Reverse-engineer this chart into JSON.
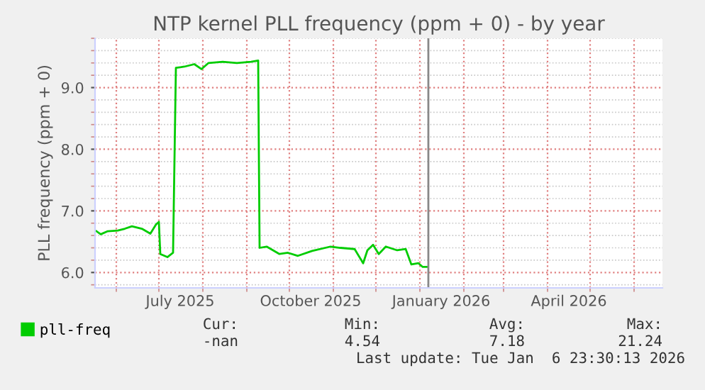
{
  "chart_data": {
    "type": "line",
    "title": "NTP kernel PLL frequency (ppm + 0) - by year",
    "ylabel": "PLL frequency (ppm + 0)",
    "xlim": [
      "2025-05-17",
      "2026-06-21"
    ],
    "ylim": [
      5.75,
      9.8
    ],
    "xticks": [
      {
        "value": "2025-07-16",
        "label": "July 2025"
      },
      {
        "value": "2025-10-16",
        "label": "October 2025"
      },
      {
        "value": "2026-01-16",
        "label": "January 2026"
      },
      {
        "value": "2026-04-16",
        "label": "April 2026"
      }
    ],
    "yticks": [
      {
        "value": 6,
        "label": "6.0"
      },
      {
        "value": 7,
        "label": "7.0"
      },
      {
        "value": 8,
        "label": "8.0"
      },
      {
        "value": 9,
        "label": "9.0"
      }
    ],
    "grid": true,
    "legend": "bottom",
    "marker": "none",
    "line_style": "solid",
    "series": [
      {
        "name": "pll-freq",
        "color": "#00cc00",
        "x": [
          "2025-05-18",
          "2025-05-21",
          "2025-05-26",
          "2025-06-02",
          "2025-06-07",
          "2025-06-12",
          "2025-06-19",
          "2025-06-25",
          "2025-06-29",
          "2025-07-01",
          "2025-07-02",
          "2025-07-07",
          "2025-07-11",
          "2025-07-13",
          "2025-07-19",
          "2025-07-26",
          "2025-07-31",
          "2025-08-05",
          "2025-08-15",
          "2025-08-25",
          "2025-09-04",
          "2025-09-09",
          "2025-09-10",
          "2025-09-15",
          "2025-09-24",
          "2025-09-30",
          "2025-10-07",
          "2025-10-17",
          "2025-10-30",
          "2025-11-06",
          "2025-11-16",
          "2025-11-22",
          "2025-11-25",
          "2025-11-29",
          "2025-12-03",
          "2025-12-08",
          "2025-12-16",
          "2025-12-22",
          "2025-12-26",
          "2025-12-31",
          "2026-01-03",
          "2026-01-06"
        ],
        "values": [
          6.67,
          6.62,
          6.67,
          6.68,
          6.71,
          6.75,
          6.71,
          6.63,
          6.78,
          6.82,
          6.3,
          6.25,
          6.32,
          9.32,
          9.34,
          9.38,
          9.3,
          9.4,
          9.42,
          9.4,
          9.42,
          9.44,
          6.4,
          6.42,
          6.3,
          6.32,
          6.27,
          6.35,
          6.42,
          6.4,
          6.38,
          6.15,
          6.36,
          6.45,
          6.3,
          6.42,
          6.36,
          6.38,
          6.13,
          6.15,
          6.09,
          6.09
        ]
      }
    ],
    "ref_lines": [
      {
        "axis": "x",
        "value": "2026-01-06T23:30",
        "color": "#888888"
      }
    ],
    "annotations": [
      "Cur:",
      "Min:",
      "Avg:",
      "Max:",
      "-nan",
      "4.54",
      "7.18",
      "21.24",
      "Last update: Tue Jan  6 23:30:13 2026"
    ]
  }
}
